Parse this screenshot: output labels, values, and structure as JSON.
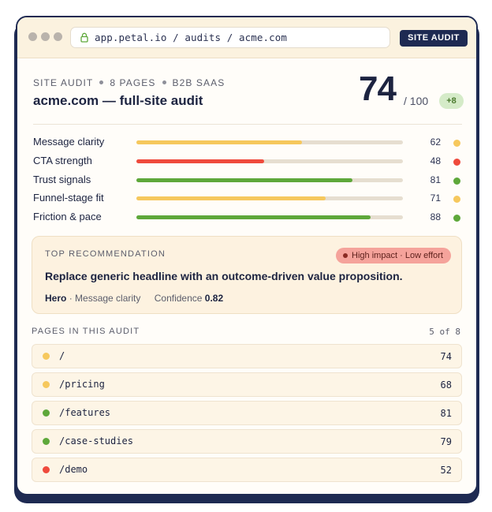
{
  "browser": {
    "url": "app.petal.io / audits / acme.com",
    "tag_button": "SITE AUDIT"
  },
  "header": {
    "meta": [
      "SITE AUDIT",
      "8 PAGES",
      "B2B SAAS"
    ],
    "title": "acme.com — full-site audit",
    "score": "74",
    "score_of": "/ 100",
    "delta": "+8"
  },
  "metrics": [
    {
      "label": "Message clarity",
      "value": 62,
      "status": "warn"
    },
    {
      "label": "CTA strength",
      "value": 48,
      "status": "bad"
    },
    {
      "label": "Trust signals",
      "value": 81,
      "status": "good"
    },
    {
      "label": "Funnel-stage fit",
      "value": 71,
      "status": "warn"
    },
    {
      "label": "Friction & pace",
      "value": 88,
      "status": "good"
    }
  ],
  "recommendation": {
    "heading": "TOP RECOMMENDATION",
    "badge": "High impact · Low effort",
    "text": "Replace generic headline with an outcome-driven value proposition.",
    "section": "Hero",
    "category": "· Message clarity",
    "confidence_label": "Confidence",
    "confidence_value": "0.82"
  },
  "pages": {
    "heading": "PAGES IN THIS AUDIT",
    "count": "5 of 8",
    "rows": [
      {
        "path": "/",
        "score": "74",
        "status": "warn"
      },
      {
        "path": "/pricing",
        "score": "68",
        "status": "warn"
      },
      {
        "path": "/features",
        "score": "81",
        "status": "good"
      },
      {
        "path": "/case-studies",
        "score": "79",
        "status": "good"
      },
      {
        "path": "/demo",
        "score": "52",
        "status": "bad"
      }
    ]
  },
  "colors": {
    "good": "#5ea83a",
    "warn": "#f6c85d",
    "bad": "#ef4a3c",
    "navy": "#1e2a52"
  }
}
